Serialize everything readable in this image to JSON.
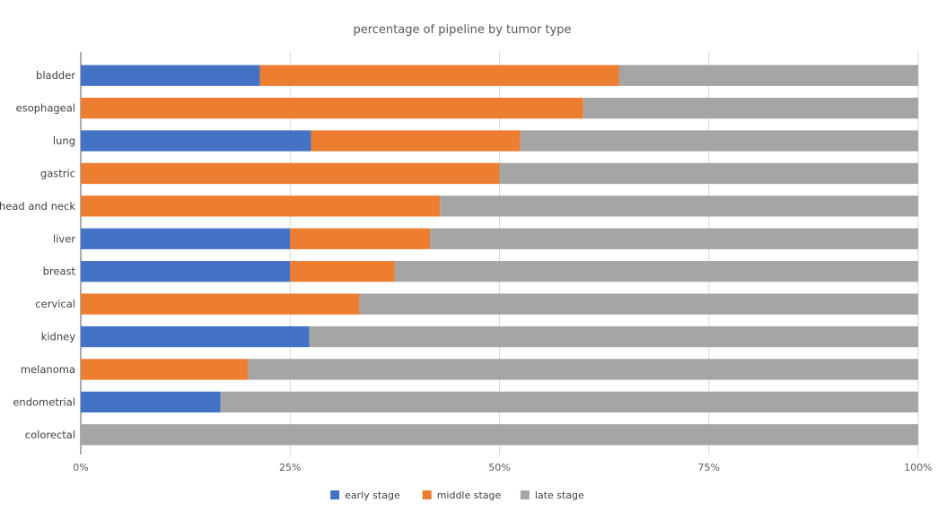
{
  "chart_data": {
    "type": "bar",
    "orientation": "horizontal",
    "stacked": "percent",
    "title": "percentage of pipeline by tumor type",
    "categories": [
      "bladder",
      "esophageal",
      "lung",
      "gastric",
      "head and neck",
      "liver",
      "breast",
      "cervical",
      "kidney",
      "melanoma",
      "endometrial",
      "colorectal"
    ],
    "series": [
      {
        "name": "early stage",
        "color": "#4472c4",
        "values": [
          21.4,
          0,
          27.5,
          0,
          0,
          25.0,
          25.0,
          0,
          27.3,
          0,
          16.7,
          0
        ]
      },
      {
        "name": "middle stage",
        "color": "#ed7d31",
        "values": [
          42.9,
          60.0,
          25.0,
          50.0,
          42.9,
          16.7,
          12.5,
          33.3,
          0,
          20.0,
          0,
          0
        ]
      },
      {
        "name": "late stage",
        "color": "#a5a5a5",
        "values": [
          35.7,
          40.0,
          47.5,
          50.0,
          57.1,
          58.3,
          62.5,
          66.7,
          72.7,
          80.0,
          83.3,
          100.0
        ]
      }
    ],
    "xlim": [
      0,
      100
    ],
    "x_ticks": [
      "0%",
      "25%",
      "50%",
      "75%",
      "100%"
    ],
    "grid": "vertical",
    "legend_position": "bottom"
  }
}
